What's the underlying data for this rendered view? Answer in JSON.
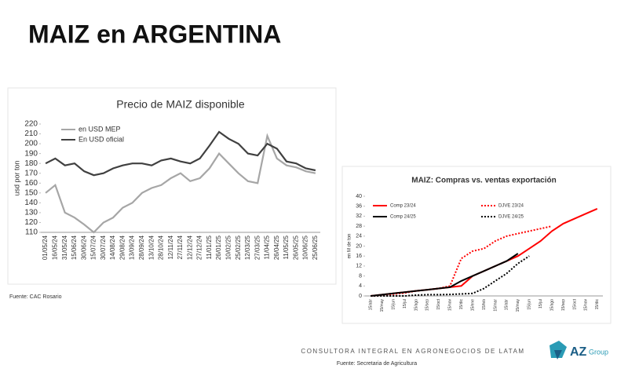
{
  "slide": {
    "title": "MAIZ en ARGENTINA",
    "source_left": "Fuente: CAC Rosario",
    "footer": "CONSULTORA INTEGRAL EN AGRONEGOCIOS DE LATAM",
    "source_right": "Fuente: Secretaria de Agricultura",
    "logo": "AZ",
    "logo_sub": "Group"
  },
  "chart_data": [
    {
      "type": "line",
      "title": "Precio de MAIZ disponible",
      "y_label": "usd por ton",
      "legend": "upper left",
      "categories": [
        "01/05/24",
        "16/05/24",
        "31/05/24",
        "15/06/24",
        "30/06/24",
        "15/07/24",
        "30/07/24",
        "14/08/24",
        "29/08/24",
        "13/09/24",
        "28/09/24",
        "13/10/24",
        "28/10/24",
        "12/11/24",
        "27/11/24",
        "12/12/24",
        "27/12/24",
        "11/01/25",
        "26/01/25",
        "10/02/25",
        "25/02/25",
        "12/03/25",
        "27/03/25",
        "11/04/25",
        "26/04/25",
        "11/05/25",
        "26/05/25",
        "10/06/25",
        "25/06/25"
      ],
      "series": [
        {
          "name": "en USD MEP",
          "color": "#a6a6a6",
          "style": "solid",
          "values": [
            150,
            158,
            130,
            125,
            118,
            110,
            120,
            125,
            135,
            140,
            150,
            155,
            158,
            165,
            170,
            162,
            165,
            175,
            190,
            180,
            170,
            162,
            160,
            208,
            185,
            178,
            176,
            172,
            170
          ]
        },
        {
          "name": "En USD oficial",
          "color": "#404040",
          "style": "solid",
          "values": [
            180,
            185,
            178,
            180,
            172,
            168,
            170,
            175,
            178,
            180,
            180,
            178,
            183,
            185,
            182,
            180,
            185,
            198,
            212,
            205,
            200,
            190,
            188,
            200,
            195,
            182,
            180,
            175,
            173
          ]
        }
      ],
      "ylim": [
        110,
        220
      ],
      "yticks": [
        110,
        120,
        130,
        140,
        150,
        160,
        170,
        180,
        190,
        200,
        210,
        220
      ],
      "grid": false
    },
    {
      "type": "line",
      "title": "MAIZ: Compras vs. ventas exportación",
      "y_label": "en M de ton",
      "legend": "upper left",
      "categories": [
        "15/abr",
        "15/may",
        "15/jun",
        "15/jul",
        "15/ago",
        "15/sep",
        "15/oct",
        "15/nov",
        "15/dic",
        "15/ene",
        "15/feb",
        "15/mar",
        "15/abr",
        "15/may",
        "15/jun",
        "15/jul",
        "15/ago",
        "15/sep",
        "15/oct",
        "15/nov",
        "15/dic"
      ],
      "series": [
        {
          "name": "Comp 23/24",
          "color": "#ff0000",
          "style": "solid",
          "values": [
            0,
            0.5,
            1,
            1.5,
            2,
            2.5,
            3,
            3.5,
            4,
            8,
            10,
            12,
            14,
            16,
            19,
            22,
            26,
            29,
            31,
            33,
            35
          ]
        },
        {
          "name": "DJVE 23/24",
          "color": "#ff0000",
          "style": "dotted",
          "values": [
            0,
            0.3,
            0.7,
            1.2,
            2,
            2.5,
            3,
            4,
            15,
            18,
            19,
            22,
            24,
            25,
            26,
            27,
            28,
            null,
            null,
            null,
            null
          ]
        },
        {
          "name": "Comp 24/25",
          "color": "#000000",
          "style": "solid",
          "values": [
            0,
            0.5,
            1,
            1.5,
            2,
            2.5,
            3,
            3.5,
            6,
            8,
            10,
            12,
            14,
            17,
            null,
            null,
            null,
            null,
            null,
            null,
            null
          ]
        },
        {
          "name": "DJVE 24/25",
          "color": "#000000",
          "style": "dotted",
          "values": [
            0,
            0,
            0,
            0,
            0.3,
            0.5,
            0.5,
            0.6,
            0.8,
            1,
            3,
            6,
            9,
            13,
            16,
            null,
            null,
            null,
            null,
            null,
            null
          ]
        }
      ],
      "ylim": [
        0,
        40
      ],
      "yticks": [
        0,
        4,
        8,
        12,
        16,
        20,
        24,
        28,
        32,
        36,
        40
      ],
      "grid": false
    }
  ]
}
